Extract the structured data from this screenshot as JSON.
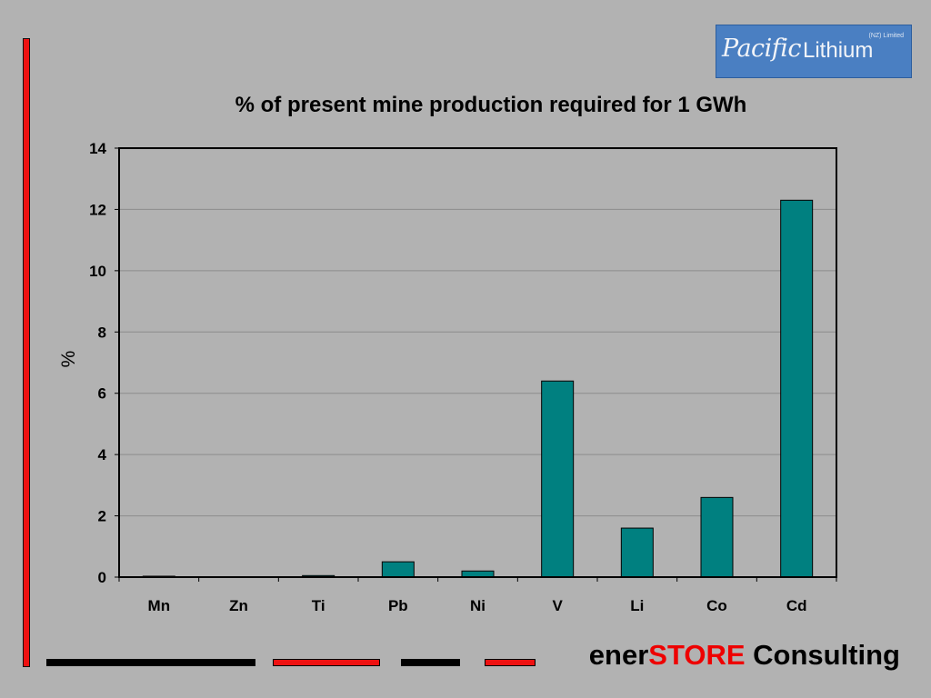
{
  "logo": {
    "script_text": "Pacific",
    "word_text": "Lithium",
    "sub_text": "(NZ) Limited"
  },
  "footer": {
    "brand_prefix": "ener",
    "brand_accent": "STORE",
    "brand_suffix": " Consulting",
    "accent_color": "#ee0000"
  },
  "colors": {
    "background": "#b2b2b2",
    "bar_fill": "#008080",
    "left_bar": "#ee1111"
  },
  "chart_data": {
    "type": "bar",
    "title": "% of present mine production required for 1 GWh",
    "xlabel": "",
    "ylabel": "%",
    "categories": [
      "Mn",
      "Zn",
      "Ti",
      "Pb",
      "Ni",
      "V",
      "Li",
      "Co",
      "Cd"
    ],
    "values": [
      0.03,
      0.01,
      0.05,
      0.5,
      0.2,
      6.4,
      1.6,
      2.6,
      12.3
    ],
    "ylim": [
      0,
      14
    ],
    "yticks": [
      0,
      2,
      4,
      6,
      8,
      10,
      12,
      14
    ],
    "grid": true,
    "legend": "none"
  }
}
